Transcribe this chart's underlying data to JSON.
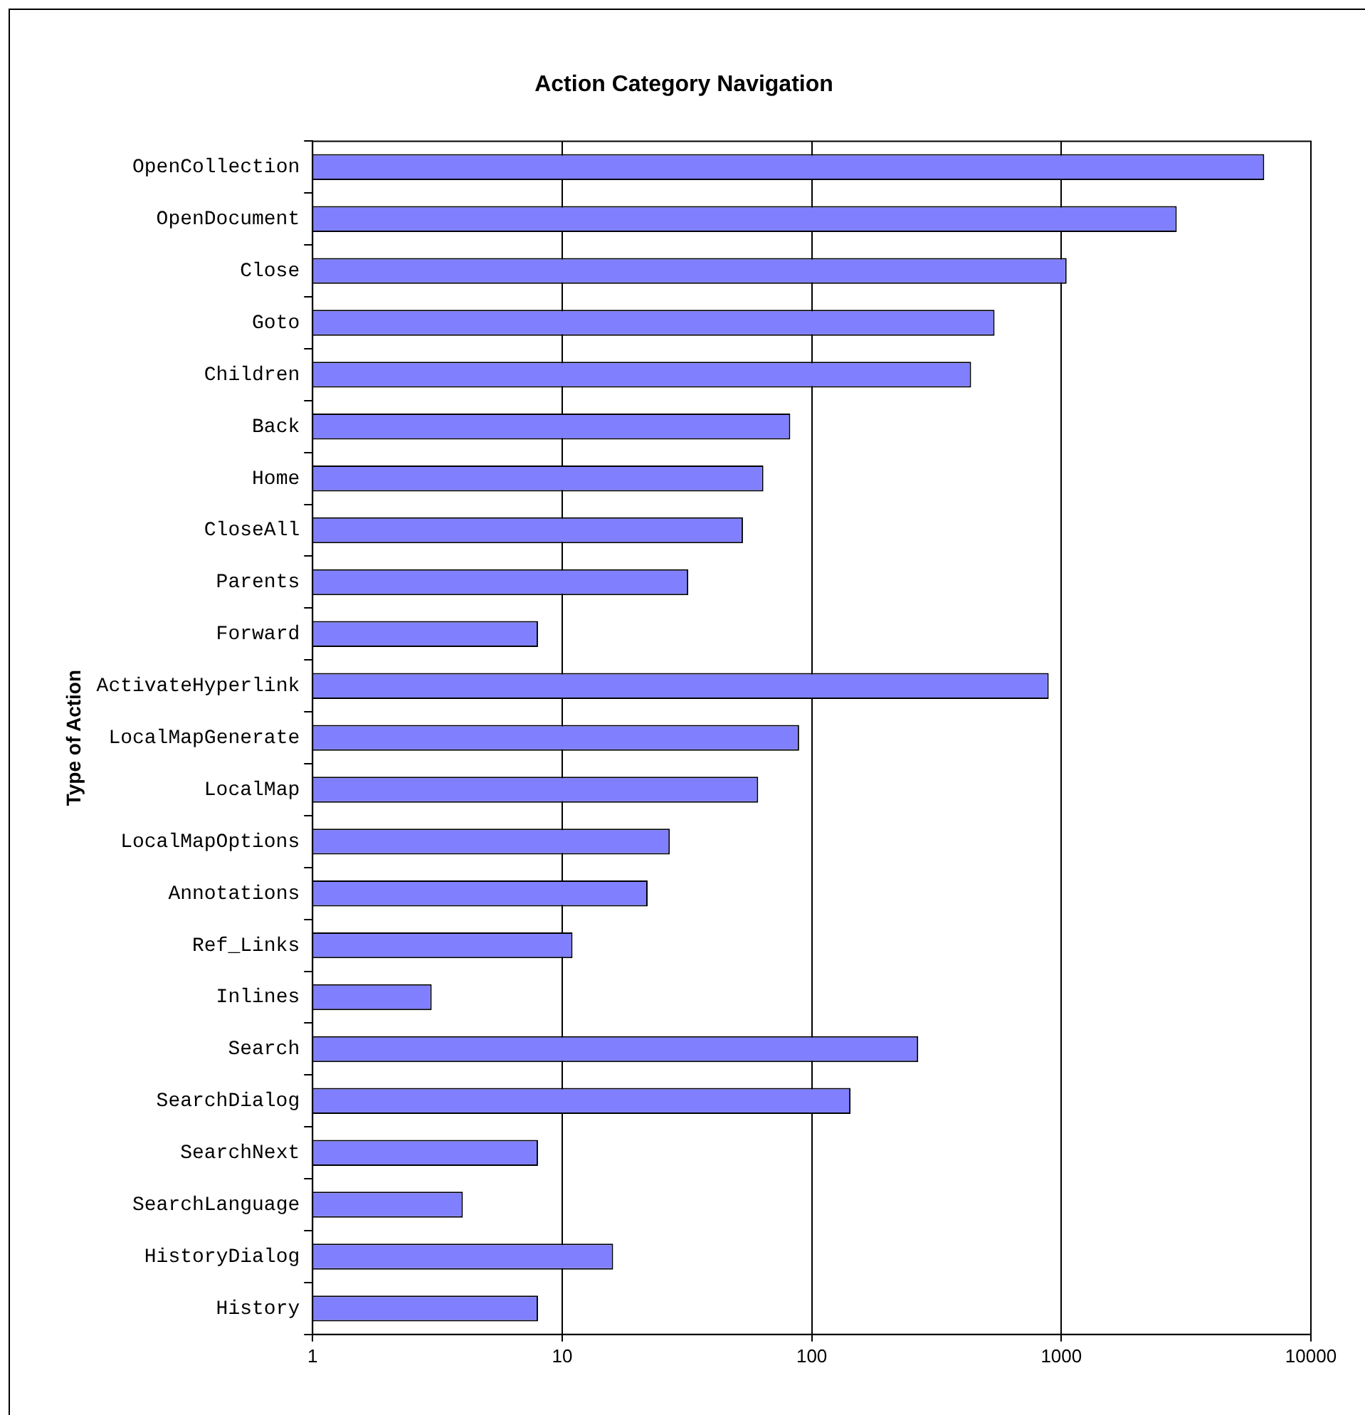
{
  "chart_data": {
    "type": "bar",
    "orientation": "horizontal",
    "title": "Action Category Navigation",
    "ylabel": "Type of Action",
    "categories": [
      "OpenCollection",
      "OpenDocument",
      "Close",
      "Goto",
      "Children",
      "Back",
      "Home",
      "CloseAll",
      "Parents",
      "Forward",
      "ActivateHyperlink",
      "LocalMapGenerate",
      "LocalMap",
      "LocalMapOptions",
      "Annotations",
      "Ref_Links",
      "Inlines",
      "Search",
      "SearchDialog",
      "SearchNext",
      "SearchLanguage",
      "HistoryDialog",
      "History"
    ],
    "values": [
      6500,
      2900,
      1050,
      540,
      435,
      82,
      64,
      53,
      32,
      8,
      890,
      89,
      61,
      27,
      22,
      11,
      3,
      267,
      143,
      8,
      4,
      16,
      8
    ],
    "color": "#8080ff",
    "log": "x",
    "xlim": [
      1,
      10000
    ],
    "xticks": [
      1,
      10,
      100,
      1000,
      10000
    ],
    "grid": "x",
    "legend": false
  }
}
